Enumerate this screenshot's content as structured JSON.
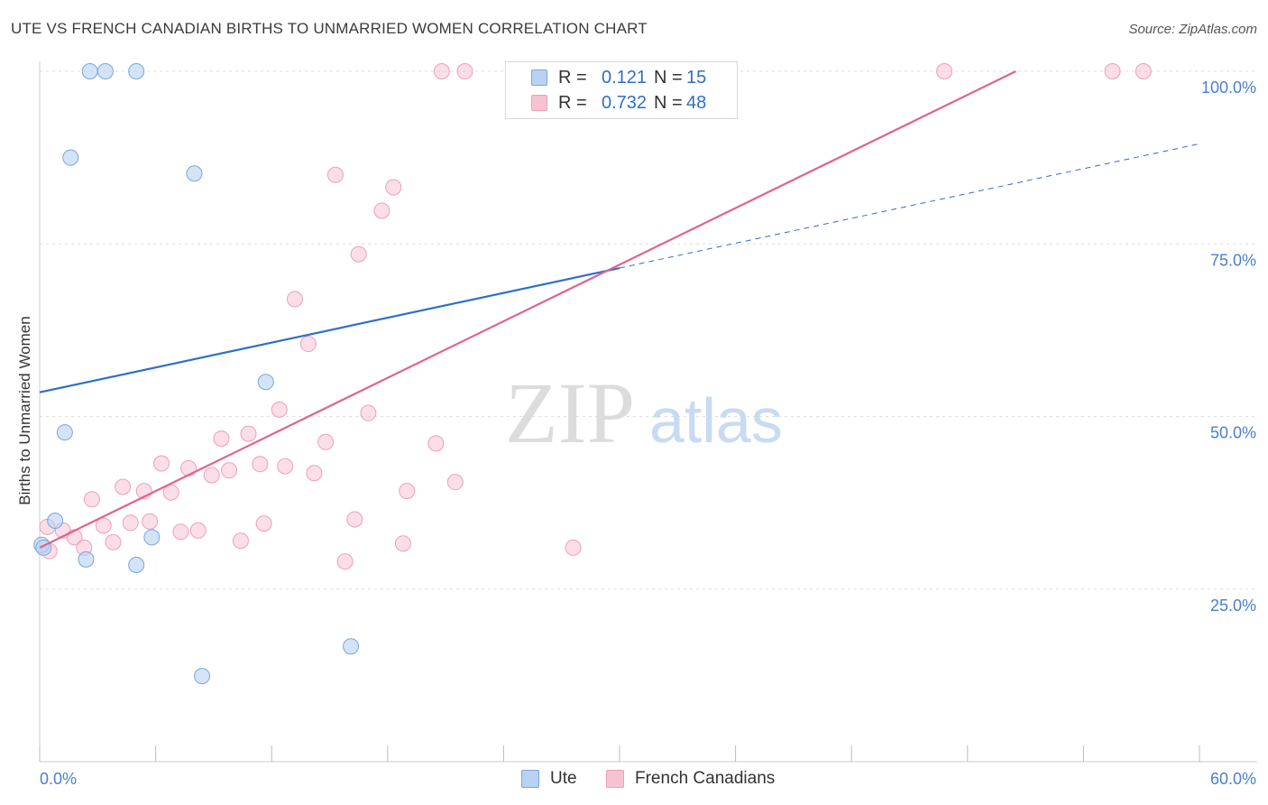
{
  "header": {
    "title": "UTE VS FRENCH CANADIAN BIRTHS TO UNMARRIED WOMEN CORRELATION CHART",
    "source": "Source: ZipAtlas.com"
  },
  "watermark": {
    "zip": "ZIP",
    "atlas": "atlas"
  },
  "legend_top": {
    "rows": [
      {
        "r_label": "R =",
        "r_value": "0.121",
        "n_label": "N =",
        "n_value": "15"
      },
      {
        "r_label": "R =",
        "r_value": "0.732",
        "n_label": "N =",
        "n_value": "48"
      }
    ]
  },
  "legend_bottom": {
    "items": [
      "Ute",
      "French Canadians"
    ]
  },
  "colors": {
    "ute_fill": "#b8d2f2",
    "ute_stroke": "#7aa6e0",
    "ute_line": "#2f6fc7",
    "fc_fill": "#f7c3d3",
    "fc_stroke": "#eda0b9",
    "fc_line": "#e0648e",
    "axis_tick_label": "#4a7fcc",
    "grid": "#dddddd"
  },
  "chart_data": {
    "type": "scatter",
    "title": "UTE VS FRENCH CANADIAN BIRTHS TO UNMARRIED WOMEN CORRELATION CHART",
    "xlabel": "",
    "ylabel": "Births to Unmarried Women",
    "xlim": [
      0,
      60
    ],
    "ylim": [
      0,
      100
    ],
    "x_tick_labels": [
      "0.0%",
      "60.0%"
    ],
    "y_ticks": [
      25,
      50,
      75,
      100
    ],
    "y_tick_labels": [
      "25.0%",
      "50.0%",
      "75.0%",
      "100.0%"
    ],
    "grid": "horizontal dashed",
    "series": [
      {
        "name": "Ute",
        "r": 0.121,
        "n": 15,
        "points": [
          [
            2.6,
            100
          ],
          [
            3.4,
            100
          ],
          [
            5.0,
            100
          ],
          [
            1.6,
            87.5
          ],
          [
            8.0,
            85.2
          ],
          [
            11.7,
            55.0
          ],
          [
            1.3,
            47.7
          ],
          [
            0.8,
            34.9
          ],
          [
            0.1,
            31.4
          ],
          [
            2.4,
            29.3
          ],
          [
            5.0,
            28.5
          ],
          [
            5.8,
            32.5
          ],
          [
            16.1,
            16.7
          ],
          [
            8.4,
            12.4
          ],
          [
            0.2,
            31.0
          ]
        ],
        "trend": {
          "x_start": 0,
          "y_start": 53.5,
          "x_solid_end": 30,
          "y_solid_end": 71.5,
          "x_end": 60,
          "y_end": 89.5
        }
      },
      {
        "name": "French Canadians",
        "r": 0.732,
        "n": 48,
        "points": [
          [
            20.8,
            100
          ],
          [
            22.0,
            100
          ],
          [
            32.4,
            100
          ],
          [
            46.8,
            100
          ],
          [
            55.5,
            100
          ],
          [
            57.1,
            100
          ],
          [
            15.3,
            85.0
          ],
          [
            18.3,
            83.2
          ],
          [
            17.7,
            79.8
          ],
          [
            16.5,
            73.5
          ],
          [
            13.2,
            67.0
          ],
          [
            13.9,
            60.5
          ],
          [
            12.4,
            51.0
          ],
          [
            17.0,
            50.5
          ],
          [
            9.4,
            46.8
          ],
          [
            10.8,
            47.5
          ],
          [
            14.8,
            46.3
          ],
          [
            20.5,
            46.1
          ],
          [
            6.3,
            43.2
          ],
          [
            7.7,
            42.5
          ],
          [
            8.9,
            41.5
          ],
          [
            9.8,
            42.2
          ],
          [
            11.4,
            43.1
          ],
          [
            12.7,
            42.8
          ],
          [
            14.2,
            41.8
          ],
          [
            21.5,
            40.5
          ],
          [
            4.3,
            39.8
          ],
          [
            5.4,
            39.2
          ],
          [
            6.8,
            39.0
          ],
          [
            19.0,
            39.2
          ],
          [
            2.7,
            38.0
          ],
          [
            3.3,
            34.2
          ],
          [
            4.7,
            34.6
          ],
          [
            5.7,
            34.8
          ],
          [
            7.3,
            33.3
          ],
          [
            8.2,
            33.5
          ],
          [
            11.6,
            34.5
          ],
          [
            16.3,
            35.1
          ],
          [
            1.2,
            33.5
          ],
          [
            1.8,
            32.5
          ],
          [
            3.8,
            31.8
          ],
          [
            10.4,
            32.0
          ],
          [
            18.8,
            31.6
          ],
          [
            2.3,
            31.0
          ],
          [
            0.5,
            30.5
          ],
          [
            27.6,
            31.0
          ],
          [
            15.8,
            29.0
          ],
          [
            0.4,
            34.0
          ]
        ],
        "trend": {
          "x_start": 0,
          "y_start": 31.0,
          "x_end": 50.5,
          "y_end": 100
        }
      }
    ]
  }
}
